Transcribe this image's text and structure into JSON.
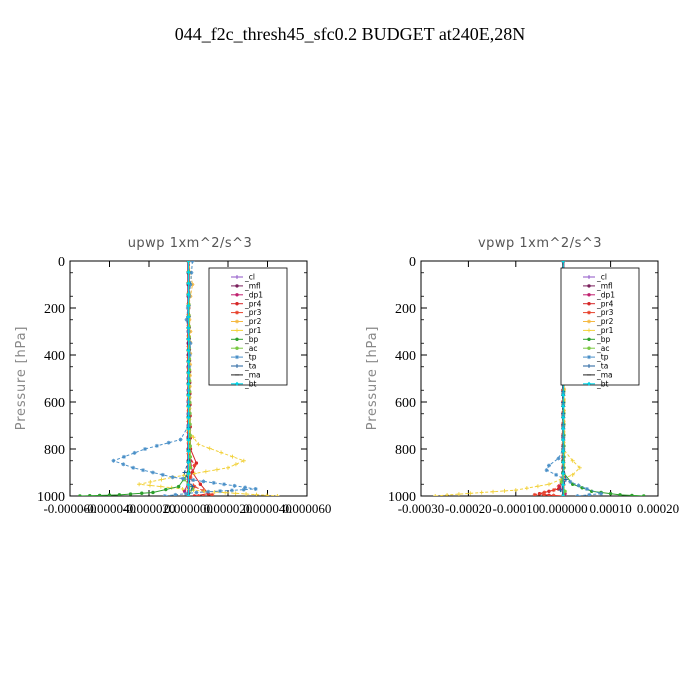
{
  "figure_title": "044_f2c_thresh45_sfc0.2  BUDGET at240E,28N",
  "chart_data": [
    {
      "type": "line",
      "title": "upwp   1xm^2/s^3",
      "ylabel": "Pressure  [hPa]",
      "xlabel": "",
      "xlim": [
        -6e-05,
        6e-05
      ],
      "ylim": [
        1000,
        0
      ],
      "yticks": [
        0,
        200,
        400,
        600,
        800,
        1000
      ],
      "ytick_labels": [
        "0",
        "200",
        "400",
        "600",
        "800",
        "1000"
      ],
      "xticks": [
        -6e-05,
        -4e-05,
        -2e-05,
        0,
        2e-05,
        4e-05,
        6e-05
      ],
      "xtick_labels": [
        "-0.000060",
        "-0.000040",
        "-0.000020",
        "0.000000",
        "0.000020",
        "0.000040",
        "0.000060"
      ],
      "legend_location": "upper-right",
      "series": [
        {
          "name": "_cl",
          "color": "#8c52c6",
          "marker": "plus",
          "x": [
            0,
            0
          ],
          "y": [
            0,
            1000
          ]
        },
        {
          "name": "_mfl",
          "color": "#7a1f5c",
          "marker": "circle",
          "x": [
            0,
            0,
            0,
            0,
            0,
            0,
            0,
            0,
            0,
            0,
            0,
            0,
            0,
            0,
            0,
            0,
            0,
            0,
            0,
            0,
            0
          ],
          "y": [
            0,
            50,
            100,
            150,
            200,
            250,
            300,
            350,
            400,
            450,
            500,
            550,
            600,
            650,
            700,
            750,
            800,
            850,
            900,
            950,
            1000
          ]
        },
        {
          "name": "_dp1",
          "color": "#c0206e",
          "marker": "circle",
          "x": [
            0,
            0,
            2e-06,
            -2e-06,
            0
          ],
          "y": [
            0,
            800,
            900,
            980,
            1000
          ]
        },
        {
          "name": "_pr4",
          "color": "#d62728",
          "marker": "circle",
          "x": [
            0,
            1e-06,
            4e-06,
            2e-06,
            6e-06,
            1e-05,
            3e-06
          ],
          "y": [
            0,
            800,
            860,
            900,
            950,
            990,
            1000
          ]
        },
        {
          "name": "_pr3",
          "color": "#e8402a",
          "marker": "star",
          "x": [
            0,
            0,
            3e-06,
            1e-06,
            3e-06,
            1.2e-05,
            5e-06
          ],
          "y": [
            0,
            820,
            870,
            920,
            960,
            995,
            1000
          ]
        },
        {
          "name": "_pr2",
          "color": "#f5b942",
          "marker": "star",
          "x": [
            0,
            2e-06,
            0,
            1e-06,
            0
          ],
          "y": [
            0,
            100,
            200,
            300,
            1000
          ]
        },
        {
          "name": "_pr1",
          "color": "#f2d13a",
          "marker": "plus",
          "x": [
            0,
            0,
            5e-06,
            2.8e-05,
            2e-05,
            -8e-06,
            -2.5e-05,
            8e-06,
            4.5e-05
          ],
          "y": [
            0,
            720,
            780,
            850,
            880,
            920,
            950,
            980,
            1000
          ]
        },
        {
          "name": "_bp",
          "color": "#2ca02c",
          "marker": "circle",
          "x": [
            0,
            0,
            -5e-06,
            -1.8e-05,
            -3.5e-05,
            -5.5e-05
          ],
          "y": [
            0,
            900,
            960,
            985,
            995,
            1000
          ]
        },
        {
          "name": "_ac",
          "color": "#7ac943",
          "marker": "circle",
          "x": [
            0,
            1e-06,
            -2e-06,
            2e-06,
            0
          ],
          "y": [
            0,
            880,
            930,
            970,
            1000
          ]
        },
        {
          "name": "_tp",
          "color": "#4a90c8",
          "marker": "star",
          "x": [
            2e-06,
            1e-06,
            -1e-06,
            1e-06,
            0,
            0,
            -4e-06,
            -2.2e-05,
            -3.8e-05,
            -2.8e-05,
            -8e-06,
            1.8e-05,
            3.4e-05,
            4e-06,
            -1.2e-05
          ],
          "y": [
            0,
            100,
            250,
            350,
            500,
            700,
            760,
            800,
            850,
            880,
            920,
            950,
            970,
            985,
            1000
          ]
        },
        {
          "name": "_ta",
          "color": "#1f5f9e",
          "marker": "plus",
          "x": [
            0,
            0,
            -2e-06,
            2e-06,
            0
          ],
          "y": [
            0,
            850,
            900,
            960,
            1000
          ]
        },
        {
          "name": "_ma",
          "color": "#222222",
          "marker": "dash",
          "x": [
            0,
            0
          ],
          "y": [
            0,
            1000
          ]
        },
        {
          "name": "_bt",
          "color": "#00d5e8",
          "marker": "diamond",
          "x": [
            0,
            0
          ],
          "y": [
            0,
            1000
          ]
        }
      ]
    },
    {
      "type": "line",
      "title": "vpwp   1xm^2/s^3",
      "ylabel": "Pressure  [hPa]",
      "xlabel": "",
      "xlim": [
        -0.0003,
        0.0002
      ],
      "ylim": [
        1000,
        0
      ],
      "yticks": [
        0,
        200,
        400,
        600,
        800,
        1000
      ],
      "ytick_labels": [
        "0",
        "200",
        "400",
        "600",
        "800",
        "1000"
      ],
      "xticks": [
        -0.0003,
        -0.0002,
        -0.0001,
        0,
        0.0001,
        0.0002
      ],
      "xtick_labels": [
        "-0.00030",
        "-0.00020",
        "-0.00010",
        "0.000000",
        "0.00010",
        "0.00020"
      ],
      "legend_location": "upper-right",
      "series": [
        {
          "name": "_cl",
          "color": "#8c52c6",
          "marker": "plus",
          "x": [
            0,
            0
          ],
          "y": [
            0,
            1000
          ]
        },
        {
          "name": "_mfl",
          "color": "#7a1f5c",
          "marker": "circle",
          "x": [
            0,
            0,
            0,
            0,
            0,
            0,
            0,
            0,
            0,
            0,
            0,
            0,
            0,
            0,
            0,
            0,
            0,
            0,
            0,
            0,
            0
          ],
          "y": [
            0,
            50,
            100,
            150,
            200,
            250,
            300,
            350,
            400,
            450,
            500,
            550,
            600,
            650,
            700,
            750,
            800,
            850,
            900,
            950,
            1000
          ]
        },
        {
          "name": "_dp1",
          "color": "#c0206e",
          "marker": "circle",
          "x": [
            0,
            0,
            -8e-06,
            4e-06,
            0
          ],
          "y": [
            0,
            900,
            960,
            990,
            1000
          ]
        },
        {
          "name": "_pr4",
          "color": "#d62728",
          "marker": "circle",
          "x": [
            0,
            0,
            -1e-05,
            -5e-05,
            -3e-05,
            0
          ],
          "y": [
            0,
            920,
            970,
            990,
            997,
            1000
          ]
        },
        {
          "name": "_pr3",
          "color": "#e8402a",
          "marker": "star",
          "x": [
            0,
            0,
            -2e-05,
            -6e-05,
            -2e-05,
            0
          ],
          "y": [
            0,
            930,
            975,
            995,
            998,
            1000
          ]
        },
        {
          "name": "_pr2",
          "color": "#f5b942",
          "marker": "star",
          "x": [
            0,
            3e-06,
            0,
            2e-06,
            0
          ],
          "y": [
            0,
            150,
            300,
            500,
            1000
          ]
        },
        {
          "name": "_pr1",
          "color": "#f2d13a",
          "marker": "plus",
          "x": [
            0,
            0,
            2e-05,
            3.5e-05,
            2e-05,
            -3e-05,
            -0.0001,
            -0.00022,
            -0.00027
          ],
          "y": [
            0,
            800,
            850,
            880,
            910,
            950,
            975,
            992,
            1000
          ]
        },
        {
          "name": "_bp",
          "color": "#2ca02c",
          "marker": "circle",
          "x": [
            0,
            0,
            2e-05,
            6e-05,
            0.00012,
            0.00017
          ],
          "y": [
            0,
            900,
            950,
            980,
            995,
            1000
          ]
        },
        {
          "name": "_ac",
          "color": "#7ac943",
          "marker": "circle",
          "x": [
            0,
            2e-06,
            -4e-06,
            4e-06,
            0
          ],
          "y": [
            0,
            880,
            940,
            980,
            1000
          ]
        },
        {
          "name": "_tp",
          "color": "#4a90c8",
          "marker": "star",
          "x": [
            0,
            0,
            -1e-05,
            -3e-05,
            -3.5e-05,
            -1.5e-05,
            1.5e-05,
            5e-05,
            8e-05,
            3e-05
          ],
          "y": [
            0,
            800,
            840,
            870,
            890,
            910,
            940,
            970,
            990,
            1000
          ]
        },
        {
          "name": "_ta",
          "color": "#1f5f9e",
          "marker": "plus",
          "x": [
            0,
            0,
            6e-06,
            -6e-06,
            0
          ],
          "y": [
            0,
            880,
            930,
            975,
            1000
          ]
        },
        {
          "name": "_ma",
          "color": "#222222",
          "marker": "dash",
          "x": [
            0,
            0
          ],
          "y": [
            0,
            1000
          ]
        },
        {
          "name": "_bt",
          "color": "#00d5e8",
          "marker": "diamond",
          "x": [
            0,
            0
          ],
          "y": [
            0,
            1000
          ]
        }
      ]
    }
  ]
}
